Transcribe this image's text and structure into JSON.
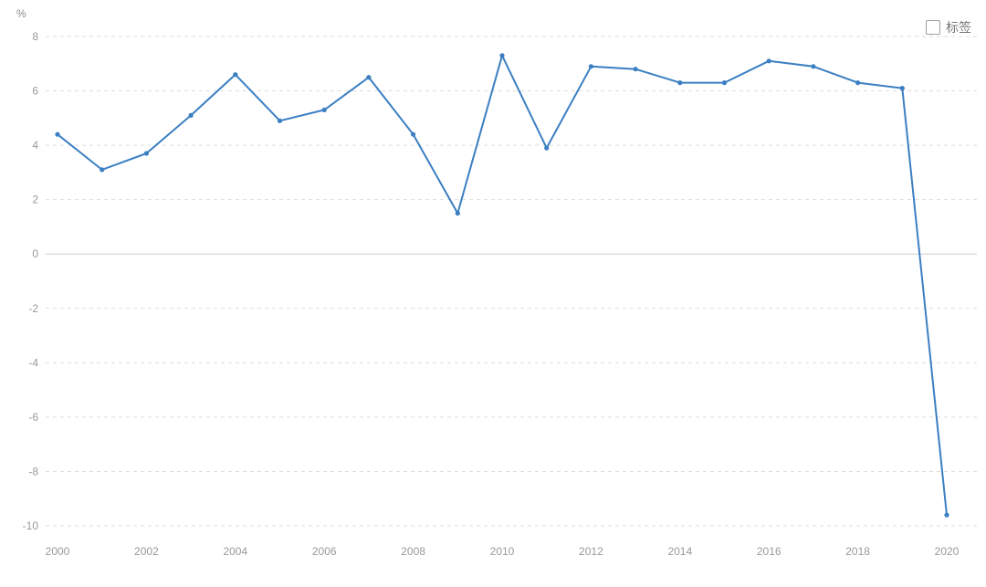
{
  "page": {
    "y_unit": "%"
  },
  "legend": {
    "label": "标签",
    "checked": false
  },
  "chart_data": {
    "type": "line",
    "title": "",
    "xlabel": "",
    "ylabel": "%",
    "x": [
      2000,
      2001,
      2002,
      2003,
      2004,
      2005,
      2006,
      2007,
      2008,
      2009,
      2010,
      2011,
      2012,
      2013,
      2014,
      2015,
      2016,
      2017,
      2018,
      2019,
      2020
    ],
    "series": [
      {
        "name": "标签",
        "values": [
          4.4,
          3.1,
          3.7,
          5.1,
          6.6,
          4.9,
          5.3,
          6.5,
          4.4,
          1.5,
          7.3,
          3.9,
          6.9,
          6.8,
          6.3,
          6.3,
          7.1,
          6.9,
          6.3,
          6.1,
          -9.6
        ]
      }
    ],
    "ylim": [
      -10,
      8
    ],
    "yticks": [
      8,
      6,
      4,
      2,
      0,
      -2,
      -4,
      -6,
      -8,
      -10
    ],
    "xticks": [
      2000,
      2002,
      2004,
      2006,
      2008,
      2010,
      2012,
      2014,
      2016,
      2018,
      2020
    ],
    "grid": true,
    "grid_style": "dashed",
    "legend_position": "top-right",
    "line_color": "#3b7fc2",
    "marker": "dot",
    "gridline_color": "#dddddd",
    "zero_line_color": "#cccccc",
    "tick_label_color": "#999999"
  }
}
